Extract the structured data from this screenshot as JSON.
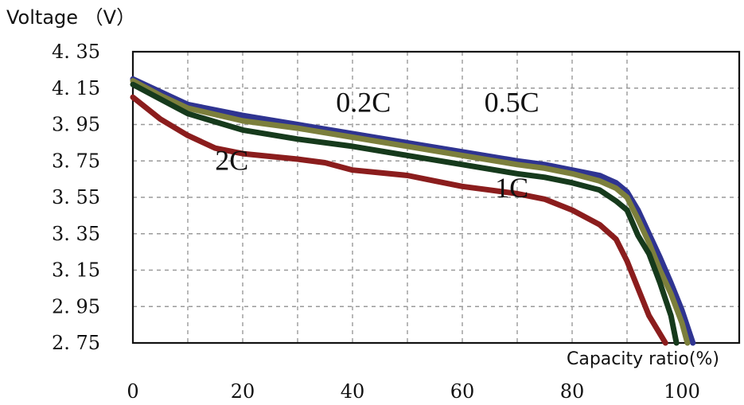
{
  "chart_data": {
    "type": "line",
    "ylabel": "Voltage （V）",
    "xlabel": "Capacity ratio(%)",
    "xlim": [
      0,
      100
    ],
    "ylim": [
      2.75,
      4.35
    ],
    "x_ticks": [
      "0",
      "20",
      "40",
      "60",
      "80",
      "100"
    ],
    "y_ticks": [
      "4. 35",
      "4. 15",
      "3. 95",
      "3. 75",
      "3. 55",
      "3. 35",
      "3. 15",
      "2. 95",
      "2. 75"
    ],
    "grid": true,
    "annotations": [
      {
        "text": "0.2C",
        "x": 42,
        "y": 4.02
      },
      {
        "text": "0.5C",
        "x": 69,
        "y": 4.02
      },
      {
        "text": "2C",
        "x": 18,
        "y": 3.7
      },
      {
        "text": "1C",
        "x": 69,
        "y": 3.55
      }
    ],
    "series": [
      {
        "name": "0.2C",
        "color": "#2f3491",
        "x": [
          0,
          5,
          10,
          20,
          30,
          40,
          50,
          60,
          70,
          75,
          80,
          85,
          88,
          90,
          92,
          94,
          96,
          98,
          100,
          102
        ],
        "y": [
          4.2,
          4.13,
          4.06,
          4.0,
          3.95,
          3.9,
          3.85,
          3.8,
          3.75,
          3.73,
          3.7,
          3.67,
          3.63,
          3.58,
          3.48,
          3.35,
          3.22,
          3.08,
          2.93,
          2.75
        ]
      },
      {
        "name": "0.5C",
        "color": "#7c7f3c",
        "x": [
          0,
          5,
          10,
          20,
          30,
          40,
          50,
          60,
          70,
          75,
          80,
          85,
          88,
          90,
          92,
          94,
          96,
          98,
          100,
          101
        ],
        "y": [
          4.19,
          4.11,
          4.04,
          3.97,
          3.93,
          3.88,
          3.83,
          3.78,
          3.73,
          3.71,
          3.68,
          3.64,
          3.6,
          3.55,
          3.43,
          3.3,
          3.15,
          3.02,
          2.86,
          2.75
        ]
      },
      {
        "name": "1C",
        "color": "#163a1c",
        "x": [
          0,
          5,
          10,
          20,
          30,
          40,
          50,
          60,
          70,
          75,
          80,
          85,
          88,
          90,
          92,
          94,
          96,
          98,
          99
        ],
        "y": [
          4.17,
          4.09,
          4.01,
          3.92,
          3.87,
          3.83,
          3.78,
          3.73,
          3.68,
          3.66,
          3.63,
          3.59,
          3.53,
          3.48,
          3.34,
          3.24,
          3.08,
          2.9,
          2.75
        ]
      },
      {
        "name": "2C",
        "color": "#8b1d1d",
        "x": [
          0,
          5,
          10,
          15,
          20,
          30,
          35,
          40,
          50,
          55,
          60,
          65,
          70,
          75,
          80,
          85,
          88,
          90,
          92,
          94,
          96,
          97
        ],
        "y": [
          4.1,
          3.98,
          3.89,
          3.82,
          3.79,
          3.76,
          3.74,
          3.7,
          3.67,
          3.64,
          3.61,
          3.59,
          3.57,
          3.54,
          3.48,
          3.4,
          3.32,
          3.2,
          3.05,
          2.9,
          2.8,
          2.75
        ]
      }
    ]
  }
}
